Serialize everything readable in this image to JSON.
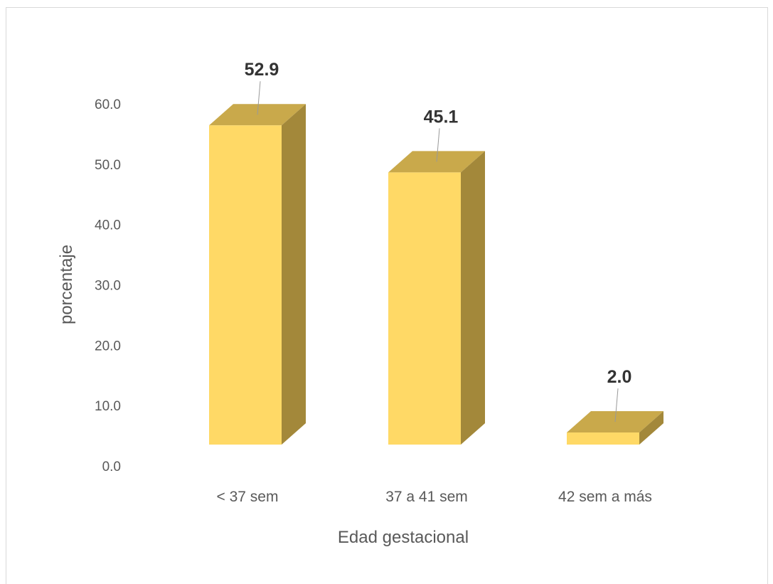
{
  "chart_data": {
    "type": "bar",
    "style": "3d-column",
    "categories": [
      "< 37 sem",
      "37 a 41 sem",
      "42 sem a más"
    ],
    "values": [
      52.9,
      45.1,
      2.0
    ],
    "data_labels": [
      "52.9",
      "45.1",
      "2.0"
    ],
    "title": "",
    "xlabel": "Edad gestacional",
    "ylabel": "porcentaje",
    "ylim": [
      0,
      60
    ],
    "yticks": [
      "0.0",
      "10.0",
      "20.0",
      "30.0",
      "40.0",
      "50.0",
      "60.0"
    ],
    "grid": false,
    "legend": "none",
    "colors": {
      "front": "#ffd966",
      "top": "#c9a94b",
      "side": "#a3883a",
      "leader": "#999999"
    }
  }
}
